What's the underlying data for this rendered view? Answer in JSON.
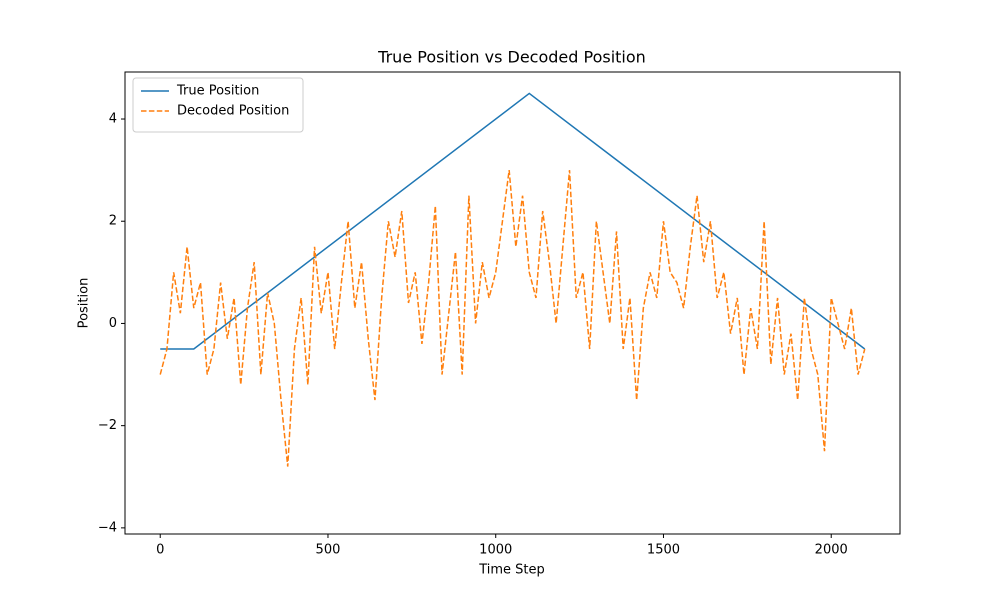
{
  "chart_data": {
    "type": "line",
    "title": "True Position vs Decoded Position",
    "xlabel": "Time Step",
    "ylabel": "Position",
    "xlim": [
      -105,
      2205
    ],
    "ylim": [
      -4.12,
      4.92
    ],
    "xticks": [
      0,
      500,
      1000,
      1500,
      2000
    ],
    "yticks": [
      {
        "value": -4,
        "label": "−4"
      },
      {
        "value": -2,
        "label": "−2"
      },
      0,
      2,
      4
    ],
    "grid": false,
    "legend": "upper left",
    "series": [
      {
        "name": "True Position",
        "color": "#1f77b4",
        "linestyle": "solid",
        "x": [
          0,
          100,
          1100,
          2100
        ],
        "values": [
          -0.5,
          -0.5,
          4.5,
          -0.5
        ]
      },
      {
        "name": "Decoded Position",
        "color": "#ff7f0e",
        "linestyle": "dashed",
        "x": [
          0,
          20,
          40,
          60,
          80,
          100,
          120,
          140,
          160,
          180,
          200,
          220,
          240,
          260,
          280,
          300,
          320,
          340,
          360,
          380,
          400,
          420,
          440,
          460,
          480,
          500,
          520,
          540,
          560,
          580,
          600,
          620,
          640,
          660,
          680,
          700,
          720,
          740,
          760,
          780,
          800,
          820,
          840,
          860,
          880,
          900,
          920,
          940,
          960,
          980,
          1000,
          1020,
          1040,
          1060,
          1080,
          1100,
          1120,
          1140,
          1160,
          1180,
          1200,
          1220,
          1240,
          1260,
          1280,
          1300,
          1320,
          1340,
          1360,
          1380,
          1400,
          1420,
          1440,
          1460,
          1480,
          1500,
          1520,
          1540,
          1560,
          1580,
          1600,
          1620,
          1640,
          1660,
          1680,
          1700,
          1720,
          1740,
          1760,
          1780,
          1800,
          1820,
          1840,
          1860,
          1880,
          1900,
          1920,
          1940,
          1960,
          1980,
          2000,
          2020,
          2040,
          2060,
          2080,
          2100
        ],
        "values": [
          -1.0,
          -0.5,
          1.0,
          0.2,
          1.5,
          0.3,
          0.8,
          -1.0,
          -0.5,
          0.8,
          -0.3,
          0.5,
          -1.2,
          0.3,
          1.2,
          -1.0,
          0.6,
          0.0,
          -1.5,
          -2.8,
          -0.5,
          0.5,
          -1.2,
          1.5,
          0.2,
          1.0,
          -0.5,
          0.8,
          2.0,
          0.3,
          1.2,
          -0.3,
          -1.5,
          0.5,
          2.0,
          1.3,
          2.2,
          0.4,
          1.0,
          -0.4,
          0.8,
          2.3,
          -1.0,
          0.2,
          1.4,
          -1.0,
          2.5,
          0.0,
          1.2,
          0.5,
          1.0,
          2.0,
          3.0,
          1.5,
          2.5,
          1.0,
          0.5,
          2.2,
          1.2,
          0.0,
          1.5,
          3.0,
          0.5,
          1.0,
          -0.5,
          2.0,
          1.0,
          0.0,
          1.8,
          -0.5,
          0.5,
          -1.5,
          0.3,
          1.0,
          0.5,
          2.0,
          1.0,
          0.8,
          0.3,
          1.5,
          2.5,
          1.2,
          2.0,
          0.5,
          1.0,
          -0.2,
          0.5,
          -1.0,
          0.3,
          -0.5,
          2.0,
          -0.8,
          0.5,
          -1.0,
          -0.2,
          -1.5,
          0.5,
          -0.5,
          -1.0,
          -2.5,
          0.5,
          0.0,
          -0.5,
          0.3,
          -1.0,
          -0.5
        ]
      }
    ]
  }
}
